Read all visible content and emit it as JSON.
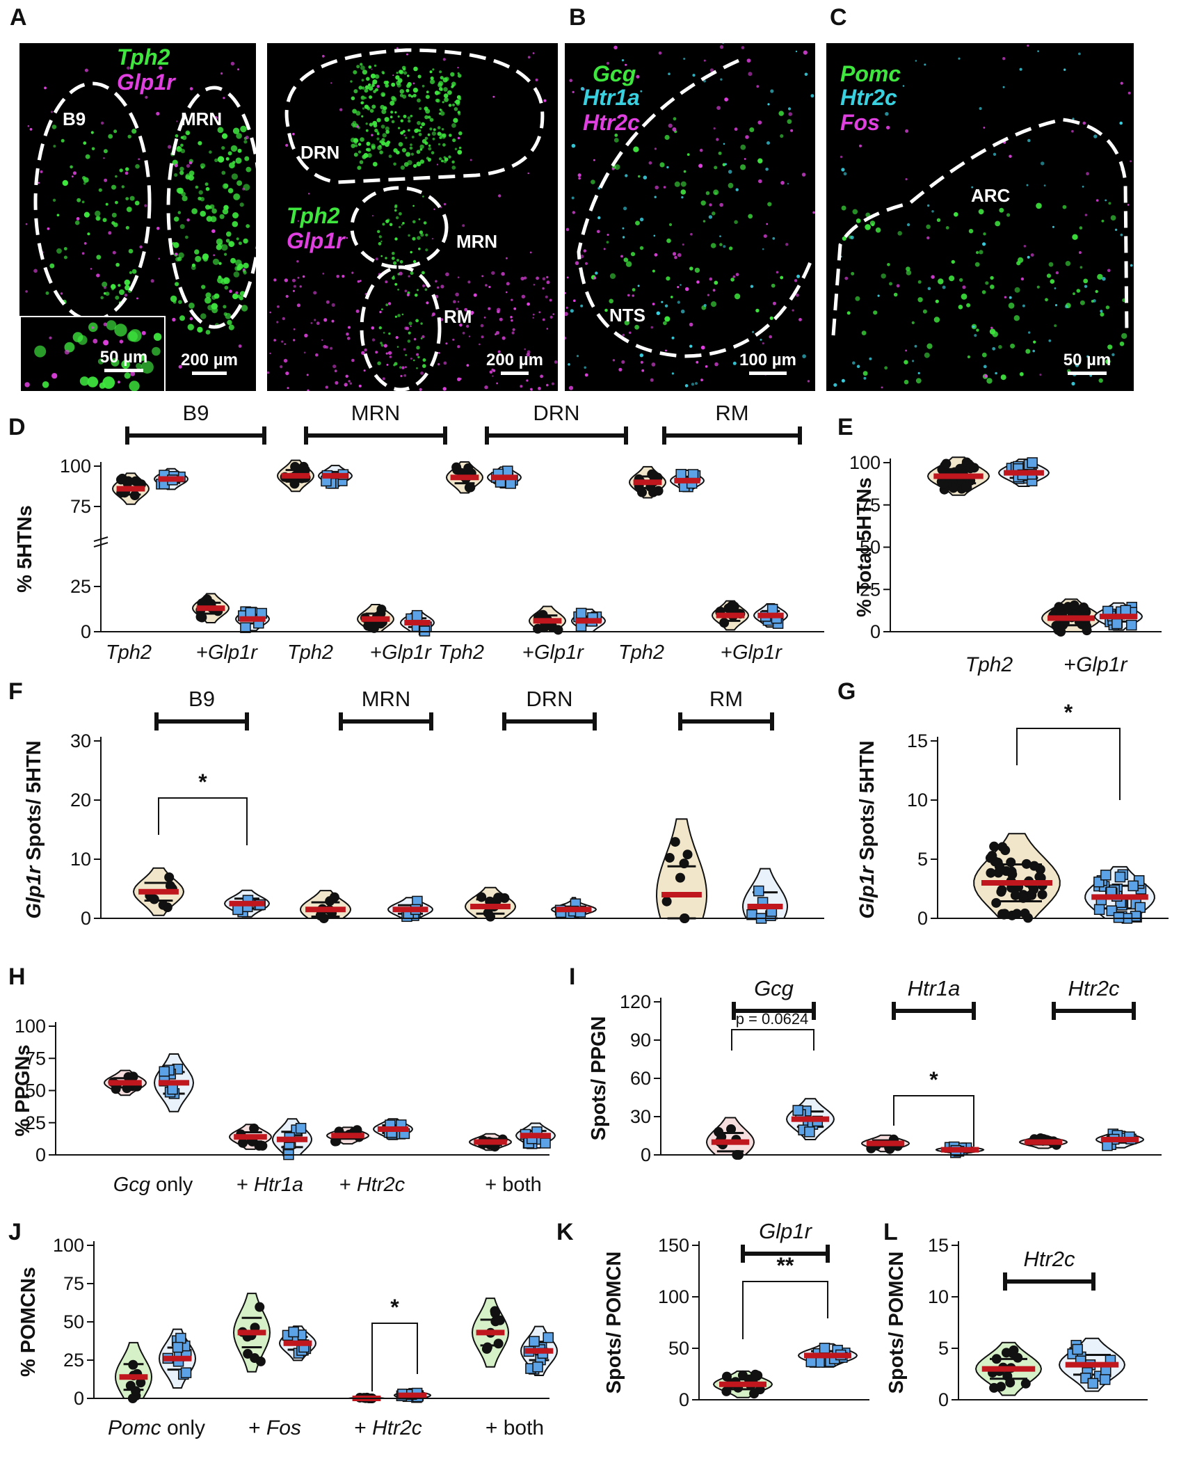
{
  "letters": [
    "A",
    "B",
    "C",
    "D",
    "E",
    "F",
    "G",
    "H",
    "I",
    "J",
    "K",
    "L"
  ],
  "micrographs": {
    "a1": {
      "probes": [
        {
          "text": "Tph2",
          "color": "#3ee63e"
        },
        {
          "text": "Glp1r",
          "color": "#e040e0"
        }
      ],
      "regions": [
        "B9",
        "MRN"
      ],
      "scale": "200 µm",
      "inset_scale": "50 µm"
    },
    "a2": {
      "probes": [
        {
          "text": "Tph2",
          "color": "#3ee63e"
        },
        {
          "text": "Glp1r",
          "color": "#e040e0"
        }
      ],
      "regions": [
        "DRN",
        "MRN",
        "RM"
      ],
      "scale": "200 µm"
    },
    "b": {
      "probes": [
        {
          "text": "Gcg",
          "color": "#3ee63e"
        },
        {
          "text": "Htr1a",
          "color": "#39d0e0"
        },
        {
          "text": "Htr2c",
          "color": "#e040e0"
        }
      ],
      "regions": [
        "NTS"
      ],
      "scale": "100 µm"
    },
    "c": {
      "probes": [
        {
          "text": "Pomc",
          "color": "#3ee63e"
        },
        {
          "text": "Htr2c",
          "color": "#39d0e0"
        },
        {
          "text": "Fos",
          "color": "#e040e0"
        }
      ],
      "regions": [
        "ARC"
      ],
      "scale": "50 µm"
    }
  },
  "chart_data": [
    {
      "panel": "D",
      "type": "violin",
      "ylabel": "% 5HTNs",
      "yticks": [
        0,
        25,
        50,
        75,
        100
      ],
      "axis_break": true,
      "groups": [
        "B9",
        "MRN",
        "DRN",
        "RM"
      ],
      "xtick_labels": [
        "Tph2",
        "+Glp1r",
        "Tph2",
        "+Glp1r",
        "Tph2",
        "+Glp1r",
        "Tph2",
        "+Glp1r"
      ],
      "series": [
        {
          "marker": "circle",
          "color": "#000000"
        },
        {
          "marker": "square",
          "color": "#5ba3e6"
        }
      ],
      "medians": [
        [
          86,
          92
        ],
        [
          13,
          7
        ],
        [
          94,
          94
        ],
        [
          7,
          5
        ],
        [
          93,
          93
        ],
        [
          6,
          6
        ],
        [
          90,
          91
        ],
        [
          9,
          9
        ]
      ]
    },
    {
      "panel": "E",
      "type": "violin",
      "ylabel": "% Total 5HTNs",
      "yticks": [
        0,
        25,
        50,
        75,
        100
      ],
      "xtick_labels": [
        "Tph2",
        "+Glp1r"
      ],
      "medians": [
        [
          92,
          94
        ],
        [
          8,
          9
        ]
      ]
    },
    {
      "panel": "F",
      "type": "violin",
      "ylabel": "Glp1r Spots/ 5HTN",
      "ylabel_italic": "Glp1r",
      "ylabel_rest": " Spots/ 5HTN",
      "yticks": [
        0,
        10,
        20,
        30
      ],
      "groups": [
        "B9",
        "MRN",
        "DRN",
        "RM"
      ],
      "significance": "*",
      "medians": [
        [
          4.5,
          2.5
        ],
        [
          1.5,
          1.5
        ],
        [
          2,
          1.5
        ],
        [
          4,
          2
        ]
      ]
    },
    {
      "panel": "G",
      "type": "violin",
      "ylabel": "Glp1r Spots/ 5HTN",
      "ylabel_italic": "Glp1r",
      "ylabel_rest": " Spots/ 5HTN",
      "yticks": [
        0,
        5,
        10,
        15
      ],
      "significance": "*",
      "medians": [
        3,
        1.8
      ]
    },
    {
      "panel": "H",
      "type": "violin",
      "ylabel": "% PPGNs",
      "yticks": [
        0,
        25,
        50,
        75,
        100
      ],
      "xtick_labels": [
        {
          "it": "Gcg",
          "rest": " only"
        },
        {
          "it": "",
          "rest": "+ ",
          "it2": "Htr1a"
        },
        {
          "it": "",
          "rest": "+ ",
          "it2": "Htr2c"
        },
        {
          "it": "",
          "rest": "+ both"
        }
      ],
      "medians": [
        [
          56,
          56
        ],
        [
          14,
          12
        ],
        [
          15,
          20
        ],
        [
          10,
          15
        ]
      ]
    },
    {
      "panel": "I",
      "type": "violin",
      "ylabel": "Spots/ PPGN",
      "yticks": [
        0,
        30,
        60,
        90,
        120
      ],
      "groups": [
        "Gcg",
        "Htr1a",
        "Htr2c"
      ],
      "p_text": "p = 0.0624",
      "significance": "*",
      "medians": [
        [
          10,
          28
        ],
        [
          9,
          4
        ],
        [
          10,
          12
        ]
      ]
    },
    {
      "panel": "J",
      "type": "violin",
      "ylabel": "% POMCNs",
      "yticks": [
        0,
        25,
        50,
        75,
        100
      ],
      "xtick_labels": [
        {
          "it": "Pomc",
          "rest": " only"
        },
        {
          "it": "",
          "rest": "+ ",
          "it2": "Fos"
        },
        {
          "it": "",
          "rest": "+ ",
          "it2": "Htr2c"
        },
        {
          "it": "",
          "rest": "+ both"
        }
      ],
      "significance": "*",
      "medians": [
        [
          14,
          26
        ],
        [
          43,
          36
        ],
        [
          0,
          2
        ],
        [
          43,
          31
        ]
      ]
    },
    {
      "panel": "K",
      "type": "violin",
      "ylabel": "Spots/ POMCN",
      "yticks": [
        0,
        50,
        100,
        150
      ],
      "groups": [
        "Glp1r"
      ],
      "significance": "**",
      "medians": [
        15,
        43
      ]
    },
    {
      "panel": "L",
      "type": "violin",
      "ylabel": "Spots/ POMCN",
      "yticks": [
        0,
        5,
        10,
        15
      ],
      "groups": [
        "Htr2c"
      ],
      "medians": [
        3,
        3.4
      ]
    }
  ]
}
